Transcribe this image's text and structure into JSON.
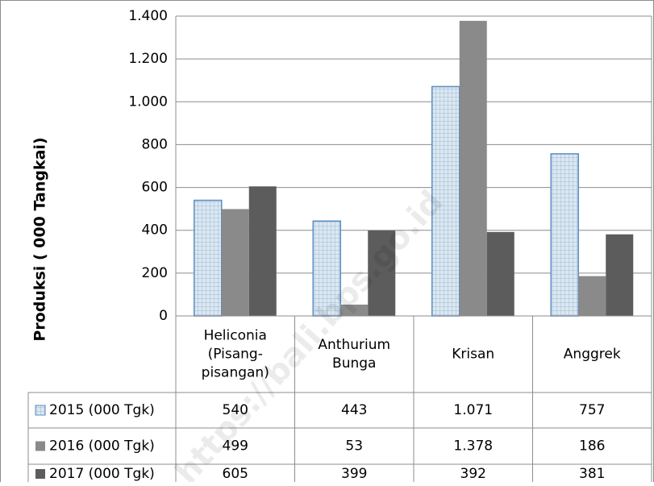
{
  "chart_data": {
    "type": "bar",
    "ylabel": "Produksi ( 000 Tangkai)",
    "ylim": [
      0,
      1400
    ],
    "yticks": [
      0,
      200,
      400,
      600,
      800,
      1000,
      1200,
      1400
    ],
    "ytick_labels": [
      "0",
      "200",
      "400",
      "600",
      "800",
      "1.000",
      "1.200",
      "1.400"
    ],
    "grid": true,
    "legend_placement": "data-table-left",
    "categories": [
      [
        "Heliconia",
        "(Pisang-",
        "pisangan)"
      ],
      [
        "Anthurium",
        "Bunga"
      ],
      [
        "Krisan"
      ],
      [
        "Anggrek"
      ]
    ],
    "series": [
      {
        "name": "2015 (000 Tgk)",
        "values": [
          540,
          443,
          1071,
          757
        ],
        "value_labels": [
          "540",
          "443",
          "1.071",
          "757"
        ],
        "color": "#dbe8f1",
        "border": "#5b8dc4",
        "pattern": "grid"
      },
      {
        "name": "2016 (000 Tgk)",
        "values": [
          499,
          53,
          1378,
          186
        ],
        "value_labels": [
          "499",
          "53",
          "1.378",
          "186"
        ],
        "color": "#8a8a8a"
      },
      {
        "name": "2017 (000 Tgk)",
        "values": [
          605,
          399,
          392,
          381
        ],
        "value_labels": [
          "605",
          "399",
          "392",
          "381"
        ],
        "color": "#5c5c5c"
      }
    ],
    "watermark": "https://bali.bps.go.id"
  }
}
